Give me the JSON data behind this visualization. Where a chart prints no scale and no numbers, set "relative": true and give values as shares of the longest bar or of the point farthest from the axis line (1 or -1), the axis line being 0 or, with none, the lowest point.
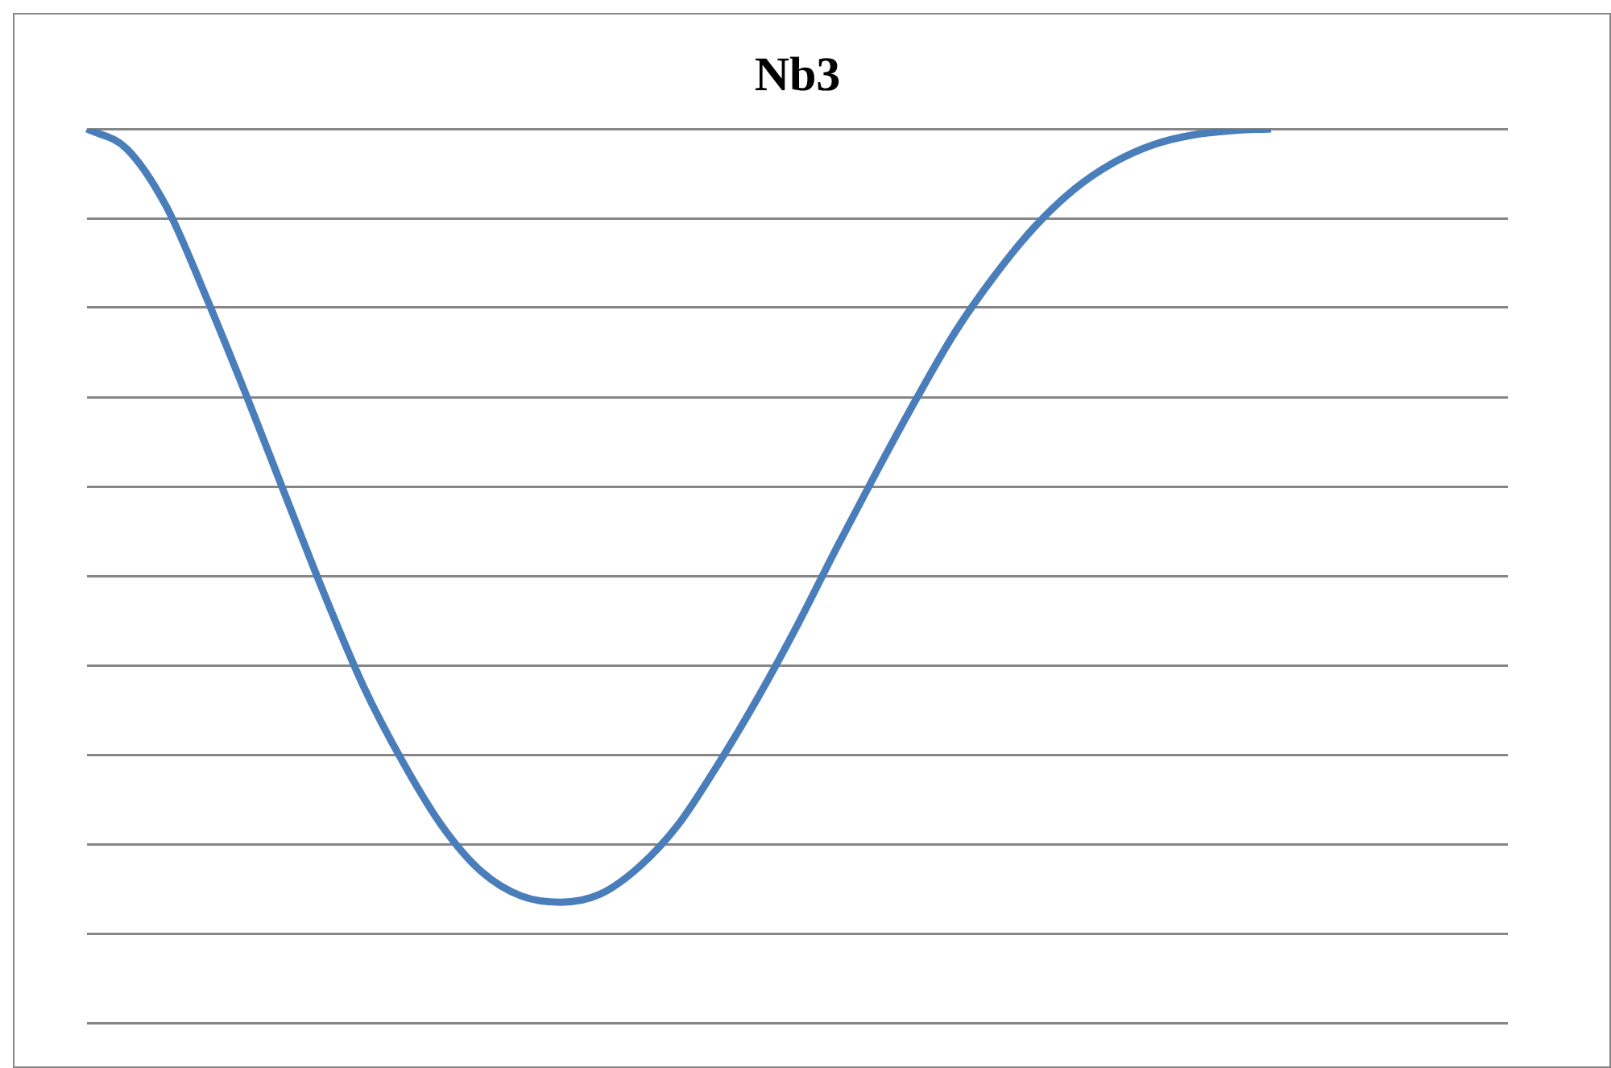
{
  "chart_data": {
    "type": "line",
    "title": "Nb3",
    "relative": true,
    "grid": "y",
    "legend": false,
    "marker": "none",
    "line_style": "solid",
    "categories": [
      null,
      null,
      null,
      null,
      null,
      null,
      null,
      null,
      null,
      null,
      null,
      null,
      null,
      null,
      null,
      null,
      null,
      null,
      null,
      null,
      null,
      null,
      null,
      null,
      null,
      null,
      null,
      null,
      null,
      null,
      null,
      null,
      null,
      null,
      null,
      null,
      null
    ],
    "series": [
      {
        "color": "#4a7ebb",
        "values": [
          1.0,
          0.978,
          0.914,
          0.814,
          0.706,
          0.593,
          0.481,
          0.377,
          0.292,
          0.22,
          0.169,
          0.142,
          0.135,
          0.144,
          0.175,
          0.223,
          0.29,
          0.364,
          0.445,
          0.532,
          0.616,
          0.697,
          0.773,
          0.836,
          0.89,
          0.932,
          0.962,
          0.982,
          0.993,
          0.998,
          1.0,
          null,
          null,
          null,
          null,
          null,
          null
        ]
      }
    ]
  }
}
